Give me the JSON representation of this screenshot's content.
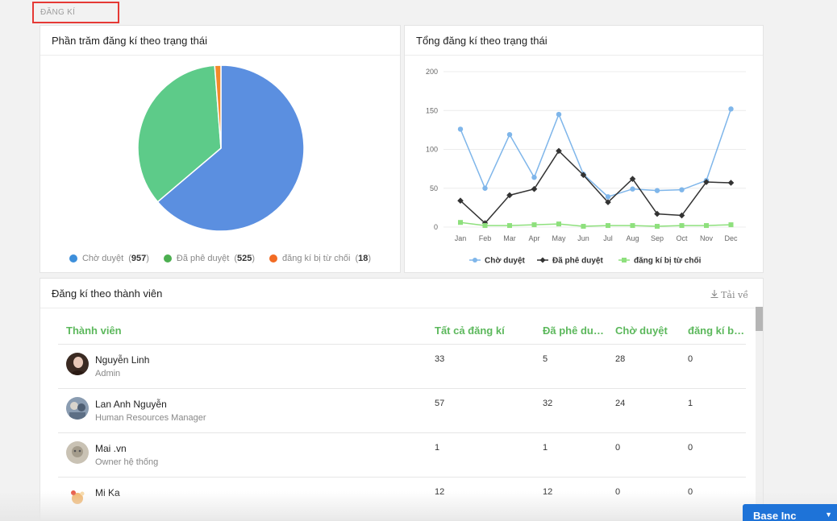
{
  "section": {
    "label": "ĐĂNG KÍ"
  },
  "pie_card": {
    "title": "Phần trăm đăng kí theo trạng thái",
    "legend": [
      {
        "label": "Chờ duyệt",
        "count": "957",
        "color": "#5b8fe0"
      },
      {
        "label": "Đã phê duyệt",
        "count": "525",
        "color": "#5dcb89"
      },
      {
        "label": "đăng kí bị từ chối",
        "count": "18",
        "color": "#f38a2a"
      }
    ]
  },
  "line_card": {
    "title": "Tổng đăng kí theo trạng thái"
  },
  "chart_data": [
    {
      "type": "pie",
      "title": "Phần trăm đăng kí theo trạng thái",
      "categories": [
        "Chờ duyệt",
        "Đã phê duyệt",
        "đăng kí bị từ chối"
      ],
      "values": [
        957,
        525,
        18
      ],
      "colors": [
        "#5b8fe0",
        "#5dcb89",
        "#f38a2a"
      ]
    },
    {
      "type": "line",
      "title": "Tổng đăng kí theo trạng thái",
      "categories": [
        "Jan",
        "Feb",
        "Mar",
        "Apr",
        "May",
        "Jun",
        "Jul",
        "Aug",
        "Sep",
        "Oct",
        "Nov",
        "Dec"
      ],
      "ylim": [
        0,
        200
      ],
      "yticks": [
        0,
        50,
        100,
        150,
        200
      ],
      "legend_position": "bottom",
      "series": [
        {
          "name": "Chờ duyệt",
          "color": "#7fb6ea",
          "marker": "circle",
          "values": [
            126,
            50,
            119,
            64,
            145,
            68,
            39,
            49,
            47,
            48,
            60,
            152
          ]
        },
        {
          "name": "Đã phê duyệt",
          "color": "#333333",
          "marker": "diamond",
          "values": [
            34,
            5,
            41,
            49,
            98,
            67,
            32,
            62,
            17,
            15,
            58,
            57
          ]
        },
        {
          "name": "đăng kí bị từ chối",
          "color": "#8ee07d",
          "marker": "square",
          "values": [
            6,
            2,
            2,
            3,
            4,
            1,
            2,
            2,
            1,
            2,
            2,
            3
          ]
        }
      ]
    }
  ],
  "members": {
    "title": "Đăng kí theo thành viên",
    "download_label": "Tải về",
    "headers": [
      "Thành viên",
      "Tất cả đăng kí",
      "Đã phê duyệt",
      "Chờ duyệt",
      "đăng kí bị từ chối"
    ],
    "rows": [
      {
        "name": "Nguyễn Linh",
        "role": "Admin",
        "total": "33",
        "approved": "5",
        "pending": "28",
        "rejected": "0",
        "avatar_color": "#3a2a22"
      },
      {
        "name": "Lan Anh Nguyễn",
        "role": "Human Resources Manager",
        "total": "57",
        "approved": "32",
        "pending": "24",
        "rejected": "1",
        "avatar_color": "#6d7f95"
      },
      {
        "name": "Mai .vn",
        "role": "Owner hệ thống",
        "total": "1",
        "approved": "1",
        "pending": "0",
        "rejected": "0",
        "avatar_color": "#b9b2a4"
      },
      {
        "name": "Mi Ka",
        "role": "",
        "total": "12",
        "approved": "12",
        "pending": "0",
        "rejected": "0",
        "avatar_color": "#f0c090"
      }
    ]
  },
  "footer_chip": {
    "label": "Base Inc"
  }
}
